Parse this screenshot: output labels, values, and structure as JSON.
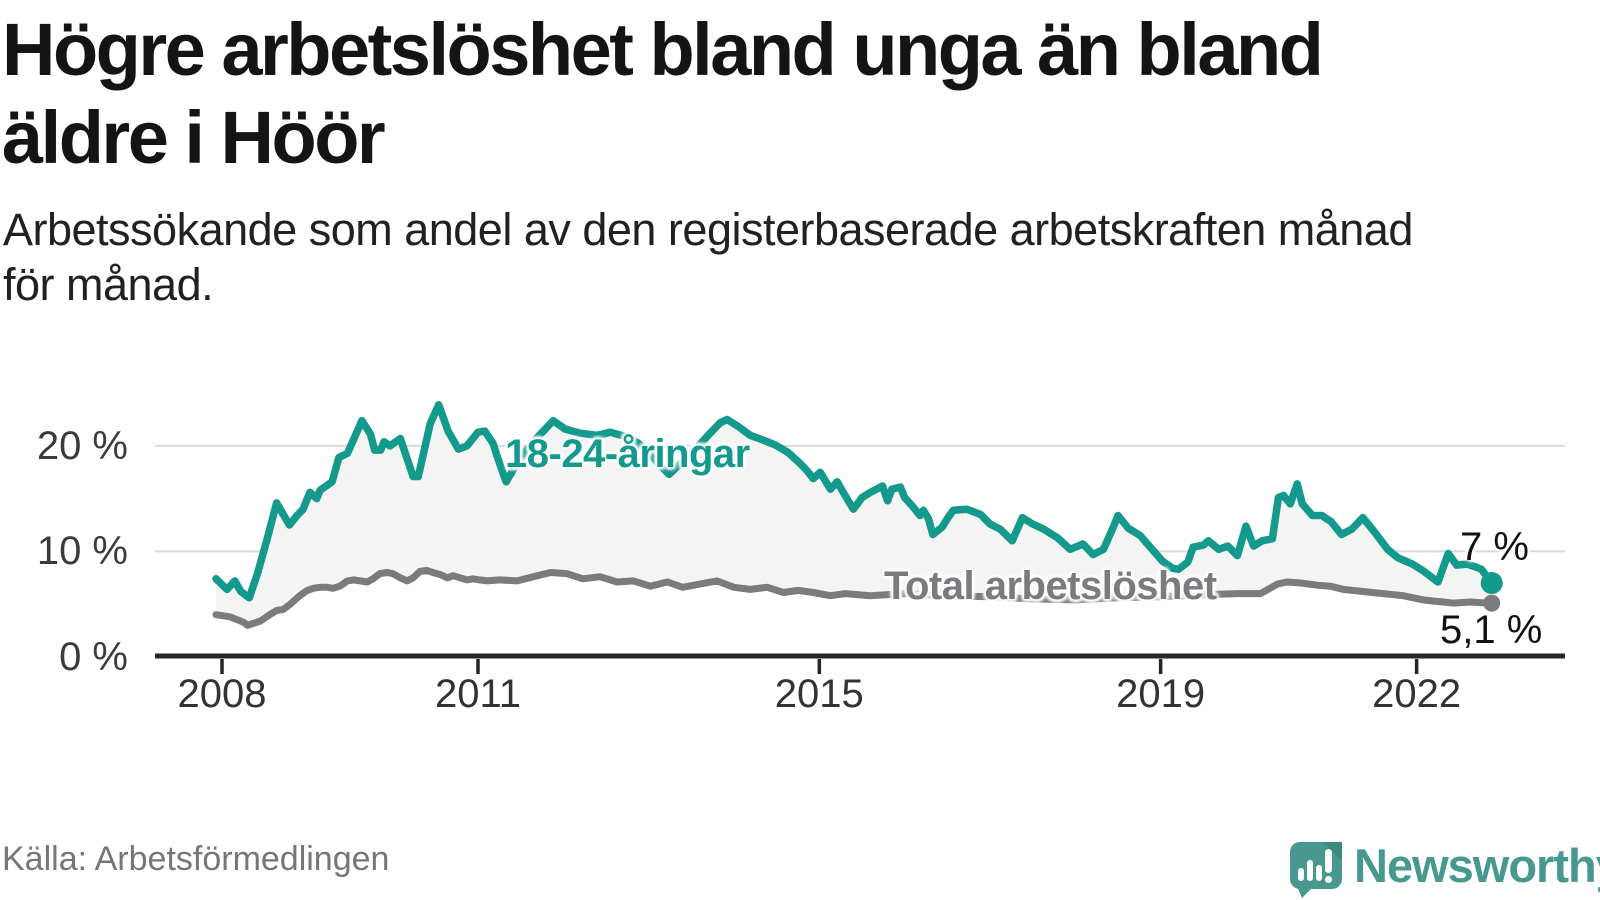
{
  "header": {
    "title_line1": "Högre arbetslöshet bland unga än bland",
    "title_line2": "äldre i Höör",
    "subtitle_line1": "Arbetssökande som andel av den registerbaserade arbetskraften månad",
    "subtitle_line2": "för månad."
  },
  "footer": {
    "source": "Källa: Arbetsförmedlingen",
    "logo_text": "Newsworthy"
  },
  "colors": {
    "youth_line": "#149a8c",
    "total_line": "#7b7a7e",
    "band_fill": "#f4f4f4",
    "grid": "#d9d9d9",
    "axis": "#262626",
    "logo_teal": "#47998f",
    "logo_fold": "#3d8a81"
  },
  "chart_data": {
    "type": "line",
    "title": "Högre arbetslöshet bland unga än bland äldre i Höör",
    "subtitle": "Arbetssökande som andel av den registerbaserade arbetskraften månad för månad.",
    "unit": "%",
    "grid": true,
    "band_between_series": true,
    "x_axis": {
      "range": [
        2007.9,
        2023.1
      ],
      "ticks": [
        {
          "value": 2008,
          "label": "2008"
        },
        {
          "value": 2011,
          "label": "2011"
        },
        {
          "value": 2015,
          "label": "2015"
        },
        {
          "value": 2019,
          "label": "2019"
        },
        {
          "value": 2022,
          "label": "2022"
        }
      ]
    },
    "y_axis": {
      "range": [
        0,
        25
      ],
      "ticks": [
        {
          "value": 0,
          "label": "0 %"
        },
        {
          "value": 10,
          "label": "10 %"
        },
        {
          "value": 20,
          "label": "20 %"
        }
      ]
    },
    "series": [
      {
        "name": "18-24-åringar",
        "color": "#149a8c",
        "end_label": "7 %",
        "end_value": 7.0,
        "points": [
          [
            2007.93,
            7.4
          ],
          [
            2008.06,
            6.4
          ],
          [
            2008.15,
            7.2
          ],
          [
            2008.22,
            6.2
          ],
          [
            2008.32,
            5.6
          ],
          [
            2008.42,
            8.0
          ],
          [
            2008.53,
            11.2
          ],
          [
            2008.64,
            14.6
          ],
          [
            2008.79,
            12.5
          ],
          [
            2008.88,
            13.4
          ],
          [
            2008.95,
            14.0
          ],
          [
            2009.03,
            15.6
          ],
          [
            2009.11,
            15.0
          ],
          [
            2009.15,
            15.8
          ],
          [
            2009.29,
            16.6
          ],
          [
            2009.37,
            18.9
          ],
          [
            2009.47,
            19.3
          ],
          [
            2009.52,
            20.2
          ],
          [
            2009.64,
            22.4
          ],
          [
            2009.74,
            21.1
          ],
          [
            2009.79,
            19.6
          ],
          [
            2009.86,
            19.6
          ],
          [
            2009.9,
            20.4
          ],
          [
            2009.97,
            20.0
          ],
          [
            2010.02,
            20.3
          ],
          [
            2010.09,
            20.7
          ],
          [
            2010.24,
            17.1
          ],
          [
            2010.3,
            17.1
          ],
          [
            2010.44,
            22.1
          ],
          [
            2010.54,
            23.9
          ],
          [
            2010.65,
            21.4
          ],
          [
            2010.77,
            19.7
          ],
          [
            2010.87,
            20.0
          ],
          [
            2011.0,
            21.3
          ],
          [
            2011.08,
            21.4
          ],
          [
            2011.18,
            20.2
          ],
          [
            2011.22,
            19.1
          ],
          [
            2011.33,
            16.6
          ],
          [
            2011.49,
            18.8
          ],
          [
            2011.67,
            20.6
          ],
          [
            2011.79,
            21.6
          ],
          [
            2011.88,
            22.4
          ],
          [
            2012.02,
            21.6
          ],
          [
            2012.2,
            21.2
          ],
          [
            2012.4,
            21.0
          ],
          [
            2012.55,
            21.3
          ],
          [
            2012.72,
            20.9
          ],
          [
            2012.87,
            20.3
          ],
          [
            2013.02,
            19.2
          ],
          [
            2013.13,
            18.2
          ],
          [
            2013.24,
            17.3
          ],
          [
            2013.37,
            18.3
          ],
          [
            2013.54,
            19.6
          ],
          [
            2013.72,
            21.2
          ],
          [
            2013.84,
            22.2
          ],
          [
            2013.92,
            22.5
          ],
          [
            2014.04,
            21.9
          ],
          [
            2014.19,
            21.0
          ],
          [
            2014.33,
            20.6
          ],
          [
            2014.48,
            20.1
          ],
          [
            2014.63,
            19.4
          ],
          [
            2014.78,
            18.3
          ],
          [
            2014.86,
            17.6
          ],
          [
            2014.93,
            16.9
          ],
          [
            2015.01,
            17.5
          ],
          [
            2015.13,
            15.9
          ],
          [
            2015.21,
            16.6
          ],
          [
            2015.28,
            15.6
          ],
          [
            2015.4,
            14.0
          ],
          [
            2015.5,
            15.1
          ],
          [
            2015.6,
            15.6
          ],
          [
            2015.74,
            16.2
          ],
          [
            2015.8,
            14.8
          ],
          [
            2015.85,
            15.9
          ],
          [
            2015.95,
            16.1
          ],
          [
            2016.0,
            15.1
          ],
          [
            2016.09,
            14.3
          ],
          [
            2016.18,
            13.4
          ],
          [
            2016.22,
            13.9
          ],
          [
            2016.28,
            13.1
          ],
          [
            2016.33,
            11.6
          ],
          [
            2016.44,
            12.3
          ],
          [
            2016.5,
            13.1
          ],
          [
            2016.57,
            13.9
          ],
          [
            2016.73,
            14.0
          ],
          [
            2016.89,
            13.5
          ],
          [
            2017.0,
            12.6
          ],
          [
            2017.12,
            12.1
          ],
          [
            2017.26,
            11.0
          ],
          [
            2017.38,
            13.2
          ],
          [
            2017.5,
            12.6
          ],
          [
            2017.63,
            12.1
          ],
          [
            2017.79,
            11.3
          ],
          [
            2017.94,
            10.2
          ],
          [
            2018.09,
            10.7
          ],
          [
            2018.21,
            9.7
          ],
          [
            2018.33,
            10.2
          ],
          [
            2018.45,
            12.4
          ],
          [
            2018.5,
            13.4
          ],
          [
            2018.62,
            12.2
          ],
          [
            2018.76,
            11.5
          ],
          [
            2018.9,
            10.2
          ],
          [
            2019.02,
            9.1
          ],
          [
            2019.14,
            8.4
          ],
          [
            2019.21,
            8.3
          ],
          [
            2019.32,
            9.0
          ],
          [
            2019.38,
            10.4
          ],
          [
            2019.5,
            10.6
          ],
          [
            2019.56,
            11.0
          ],
          [
            2019.68,
            10.2
          ],
          [
            2019.79,
            10.5
          ],
          [
            2019.9,
            9.6
          ],
          [
            2020.0,
            12.4
          ],
          [
            2020.09,
            10.5
          ],
          [
            2020.19,
            11.0
          ],
          [
            2020.31,
            11.2
          ],
          [
            2020.38,
            15.1
          ],
          [
            2020.44,
            15.3
          ],
          [
            2020.52,
            14.5
          ],
          [
            2020.6,
            16.4
          ],
          [
            2020.66,
            14.5
          ],
          [
            2020.78,
            13.4
          ],
          [
            2020.89,
            13.4
          ],
          [
            2021.0,
            12.8
          ],
          [
            2021.12,
            11.6
          ],
          [
            2021.24,
            12.1
          ],
          [
            2021.37,
            13.2
          ],
          [
            2021.51,
            11.8
          ],
          [
            2021.66,
            10.2
          ],
          [
            2021.78,
            9.4
          ],
          [
            2021.95,
            8.8
          ],
          [
            2022.07,
            8.2
          ],
          [
            2022.25,
            7.1
          ],
          [
            2022.37,
            9.8
          ],
          [
            2022.47,
            8.7
          ],
          [
            2022.59,
            8.8
          ],
          [
            2022.7,
            8.5
          ],
          [
            2022.76,
            8.3
          ],
          [
            2022.88,
            7.0
          ]
        ]
      },
      {
        "name": "Total arbetslöshet",
        "color": "#7b7a7e",
        "end_label": "5,1 %",
        "end_value": 5.1,
        "points": [
          [
            2007.93,
            4.0
          ],
          [
            2008.09,
            3.8
          ],
          [
            2008.25,
            3.3
          ],
          [
            2008.3,
            3.0
          ],
          [
            2008.45,
            3.4
          ],
          [
            2008.56,
            4.0
          ],
          [
            2008.64,
            4.4
          ],
          [
            2008.72,
            4.5
          ],
          [
            2008.8,
            5.0
          ],
          [
            2008.91,
            5.8
          ],
          [
            2009.0,
            6.3
          ],
          [
            2009.07,
            6.5
          ],
          [
            2009.15,
            6.6
          ],
          [
            2009.23,
            6.6
          ],
          [
            2009.3,
            6.5
          ],
          [
            2009.38,
            6.7
          ],
          [
            2009.47,
            7.2
          ],
          [
            2009.54,
            7.3
          ],
          [
            2009.62,
            7.2
          ],
          [
            2009.7,
            7.1
          ],
          [
            2009.77,
            7.4
          ],
          [
            2009.85,
            7.9
          ],
          [
            2009.93,
            8.0
          ],
          [
            2010.0,
            7.9
          ],
          [
            2010.09,
            7.5
          ],
          [
            2010.17,
            7.2
          ],
          [
            2010.24,
            7.5
          ],
          [
            2010.32,
            8.1
          ],
          [
            2010.4,
            8.2
          ],
          [
            2010.47,
            8.0
          ],
          [
            2010.56,
            7.8
          ],
          [
            2010.64,
            7.5
          ],
          [
            2010.71,
            7.7
          ],
          [
            2010.79,
            7.5
          ],
          [
            2010.87,
            7.3
          ],
          [
            2010.94,
            7.4
          ],
          [
            2011.02,
            7.3
          ],
          [
            2011.11,
            7.2
          ],
          [
            2011.25,
            7.3
          ],
          [
            2011.46,
            7.2
          ],
          [
            2011.65,
            7.6
          ],
          [
            2011.85,
            8.0
          ],
          [
            2012.04,
            7.9
          ],
          [
            2012.23,
            7.4
          ],
          [
            2012.43,
            7.6
          ],
          [
            2012.63,
            7.1
          ],
          [
            2012.82,
            7.2
          ],
          [
            2013.02,
            6.7
          ],
          [
            2013.22,
            7.1
          ],
          [
            2013.4,
            6.6
          ],
          [
            2013.6,
            6.9
          ],
          [
            2013.8,
            7.2
          ],
          [
            2014.0,
            6.6
          ],
          [
            2014.19,
            6.4
          ],
          [
            2014.39,
            6.6
          ],
          [
            2014.58,
            6.1
          ],
          [
            2014.75,
            6.3
          ],
          [
            2014.93,
            6.1
          ],
          [
            2015.13,
            5.8
          ],
          [
            2015.3,
            6.0
          ],
          [
            2015.6,
            5.8
          ],
          [
            2016.0,
            6.0
          ],
          [
            2016.5,
            5.8
          ],
          [
            2017.0,
            5.7
          ],
          [
            2017.5,
            5.5
          ],
          [
            2018.0,
            5.4
          ],
          [
            2018.5,
            5.6
          ],
          [
            2019.0,
            5.7
          ],
          [
            2019.5,
            5.9
          ],
          [
            2019.9,
            6.0
          ],
          [
            2020.17,
            6.0
          ],
          [
            2020.37,
            6.9
          ],
          [
            2020.48,
            7.1
          ],
          [
            2020.64,
            7.0
          ],
          [
            2020.84,
            6.8
          ],
          [
            2020.99,
            6.7
          ],
          [
            2021.14,
            6.4
          ],
          [
            2021.37,
            6.2
          ],
          [
            2021.61,
            6.0
          ],
          [
            2021.73,
            5.9
          ],
          [
            2021.84,
            5.8
          ],
          [
            2021.96,
            5.6
          ],
          [
            2022.08,
            5.4
          ],
          [
            2022.19,
            5.3
          ],
          [
            2022.31,
            5.2
          ],
          [
            2022.43,
            5.1
          ],
          [
            2022.63,
            5.2
          ],
          [
            2022.74,
            5.15
          ],
          [
            2022.88,
            5.1
          ]
        ]
      }
    ]
  }
}
